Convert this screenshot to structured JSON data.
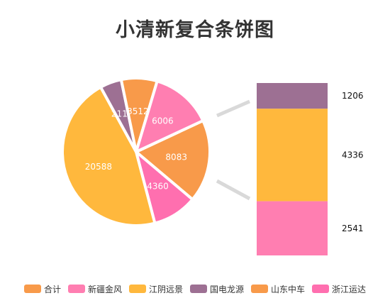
{
  "chart_data": {
    "type": "pie",
    "title": "小清新复合条饼图",
    "pie": {
      "slices": [
        {
          "name": "山东中车",
          "value": 8083,
          "color": "#F89A4A",
          "label": "8083"
        },
        {
          "name": "浙江运达",
          "value": 4360,
          "color": "#FF6FAF",
          "label": "4360"
        },
        {
          "name": "江阴远景",
          "value": 20588,
          "color": "#FFB83D",
          "label": "20588"
        },
        {
          "name": "国电龙源",
          "value": 2113,
          "color": "#9D7093",
          "label": "2113"
        },
        {
          "name": "合计",
          "value": 3512,
          "color": "#F89A4A",
          "label": "3512"
        },
        {
          "name": "新疆金风",
          "value": 6006,
          "color": "#FF7EB1",
          "label": "6006"
        }
      ]
    },
    "bar": {
      "type": "stacked-bar",
      "segments": [
        {
          "value": 1206,
          "color": "#9D7093",
          "label": "1206"
        },
        {
          "value": 4336,
          "color": "#FFB83D",
          "label": "4336"
        },
        {
          "value": 2541,
          "color": "#FF7EB1",
          "label": "2541"
        }
      ]
    },
    "connector_color": "#D9D9D9",
    "legend": [
      {
        "label": "合计",
        "color": "#F89A4A"
      },
      {
        "label": "新疆金风",
        "color": "#FF7EB1"
      },
      {
        "label": "江阴远景",
        "color": "#FFB83D"
      },
      {
        "label": "国电龙源",
        "color": "#9D7093"
      },
      {
        "label": "山东中车",
        "color": "#F89A4A"
      },
      {
        "label": "浙江运达",
        "color": "#FF6FAF"
      }
    ],
    "legend_position": "bottom"
  }
}
